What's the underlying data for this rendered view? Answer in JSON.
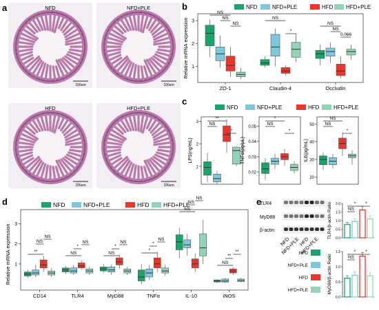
{
  "groups": [
    "NFD",
    "NFD+PLE",
    "HFD",
    "HFD+PLE"
  ],
  "colors": {
    "NFD": "#1aa36b",
    "NFD+PLE": "#7fc8dc",
    "HFD": "#e8382d",
    "HFD+PLE": "#93d3b6",
    "histo_bg": "#f3eef3",
    "tissue": "#b87aa8",
    "tissue_dark": "#8e4f86",
    "lumen": "#f7f2f6"
  },
  "panel_labels": {
    "a": "a",
    "b": "b",
    "c": "c",
    "d": "d",
    "e": "e"
  },
  "panel_a": {
    "tiles": [
      {
        "title": "NFD",
        "scale": "100um"
      },
      {
        "title": "NFD+PLE",
        "scale": "100um"
      },
      {
        "title": "HFD",
        "scale": "100um"
      },
      {
        "title": "HFD+PLE",
        "scale": "100um"
      }
    ]
  },
  "panel_b": {
    "ylabel": "Relative mRNA expression",
    "yticks": [
      "1",
      "2",
      "3"
    ],
    "sig": [
      "NS",
      "NS",
      "NS",
      "NS",
      "*",
      "NS",
      "NS",
      "0.066"
    ],
    "chart_data": {
      "type": "box",
      "ylim": [
        0.3,
        3.3
      ],
      "categories": [
        "ZO-1",
        "Claudin-4",
        "Occludin"
      ],
      "series": [
        {
          "name": "NFD",
          "boxes": [
            {
              "min": 1.4,
              "q1": 1.9,
              "med": 2.45,
              "q3": 2.8,
              "max": 3.05
            },
            {
              "min": 0.95,
              "q1": 1.05,
              "med": 1.15,
              "q3": 1.3,
              "max": 1.45
            },
            {
              "min": 1.05,
              "q1": 1.35,
              "med": 1.55,
              "q3": 1.7,
              "max": 1.95
            }
          ]
        },
        {
          "name": "NFD+PLE",
          "boxes": [
            {
              "min": 0.95,
              "q1": 1.25,
              "med": 1.55,
              "q3": 1.85,
              "max": 2.35
            },
            {
              "min": 1.0,
              "q1": 1.45,
              "med": 1.85,
              "q3": 2.4,
              "max": 2.65
            },
            {
              "min": 1.15,
              "q1": 1.45,
              "med": 1.65,
              "q3": 1.8,
              "max": 2.05
            }
          ]
        },
        {
          "name": "HFD",
          "boxes": [
            {
              "min": 0.55,
              "q1": 0.8,
              "med": 1.05,
              "q3": 1.45,
              "max": 1.85
            },
            {
              "min": 0.6,
              "q1": 0.7,
              "med": 0.8,
              "q3": 0.95,
              "max": 1.05
            },
            {
              "min": 0.5,
              "q1": 0.6,
              "med": 0.8,
              "q3": 1.1,
              "max": 1.45
            }
          ]
        },
        {
          "name": "HFD+PLE",
          "boxes": [
            {
              "min": 0.45,
              "q1": 0.55,
              "med": 0.65,
              "q3": 0.75,
              "max": 0.95
            },
            {
              "min": 1.2,
              "q1": 1.4,
              "med": 1.75,
              "q3": 2.05,
              "max": 2.45
            },
            {
              "min": 1.3,
              "q1": 1.5,
              "med": 1.65,
              "q3": 1.75,
              "max": 1.95
            }
          ]
        }
      ]
    }
  },
  "panel_c": {
    "subplots": [
      {
        "ylabel": "LPS(ng/mL)",
        "yticks": [
          "1",
          "2",
          "3"
        ],
        "ylim": [
          0.2,
          3.2
        ],
        "sig": [
          "NS",
          "**",
          "*"
        ],
        "boxes": [
          {
            "min": 0.3,
            "q1": 0.6,
            "med": 0.95,
            "q3": 1.2,
            "max": 1.6
          },
          {
            "min": 0.2,
            "q1": 0.3,
            "med": 0.45,
            "q3": 0.65,
            "max": 0.8
          },
          {
            "min": 1.6,
            "q1": 2.1,
            "med": 2.4,
            "q3": 2.8,
            "max": 3.1
          },
          {
            "min": 1.0,
            "q1": 1.1,
            "med": 1.7,
            "q3": 1.85,
            "max": 1.9
          }
        ]
      },
      {
        "ylabel": "TNFα(pg/μL)",
        "yticks": [
          "0.02",
          "0.03",
          "0.04",
          "0.05"
        ],
        "ylim": [
          0.012,
          0.056
        ],
        "sig": [
          "NS",
          "*",
          "*"
        ],
        "boxes": [
          {
            "min": 0.015,
            "q1": 0.019,
            "med": 0.022,
            "q3": 0.026,
            "max": 0.029
          },
          {
            "min": 0.022,
            "q1": 0.025,
            "med": 0.027,
            "q3": 0.029,
            "max": 0.032
          },
          {
            "min": 0.024,
            "q1": 0.028,
            "med": 0.03,
            "q3": 0.032,
            "max": 0.035
          },
          {
            "min": 0.019,
            "q1": 0.021,
            "med": 0.023,
            "q3": 0.025,
            "max": 0.027
          }
        ]
      },
      {
        "ylabel": "IL6(pg/mL)",
        "yticks": [
          "20",
          "30",
          "40",
          "50"
        ],
        "ylim": [
          16,
          54
        ],
        "sig": [
          "NS",
          "NS",
          "*"
        ],
        "boxes": [
          {
            "min": 24,
            "q1": 27,
            "med": 30,
            "q3": 32,
            "max": 34
          },
          {
            "min": 25,
            "q1": 27,
            "med": 29,
            "q3": 31,
            "max": 33
          },
          {
            "min": 32,
            "q1": 36,
            "med": 39,
            "q3": 42,
            "max": 45
          },
          {
            "min": 27,
            "q1": 31,
            "med": 32,
            "q3": 33,
            "max": 35
          }
        ]
      }
    ]
  },
  "panel_d": {
    "ylabel": "Relative mRNA expression",
    "yticks": [
      "1",
      "2",
      "3"
    ],
    "sig": [
      "**",
      "NS",
      "NS",
      "NS",
      "*",
      "NS",
      "NS",
      "*",
      "NS",
      "*",
      "*",
      "NS",
      "NS",
      "NS",
      "NS",
      "NS",
      "**",
      "**"
    ],
    "chart_data": {
      "type": "box",
      "ylim": [
        -0.3,
        3.7
      ],
      "categories": [
        "CD14",
        "TLR4",
        "MyD88",
        "TNFα",
        "IL-10",
        "iNOS"
      ],
      "series": [
        {
          "name": "NFD",
          "boxes": [
            {
              "min": 0.3,
              "q1": 0.4,
              "med": 0.5,
              "q3": 0.6,
              "max": 0.7
            },
            {
              "min": 0.5,
              "q1": 0.6,
              "med": 0.7,
              "q3": 0.8,
              "max": 0.9
            },
            {
              "min": 0.55,
              "q1": 0.65,
              "med": 0.75,
              "q3": 0.85,
              "max": 1.0
            },
            {
              "min": 0.0,
              "q1": 0.15,
              "med": 0.35,
              "q3": 0.7,
              "max": 1.0
            },
            {
              "min": 1.3,
              "q1": 1.7,
              "med": 2.1,
              "q3": 2.45,
              "max": 2.8
            },
            {
              "min": 0.05,
              "q1": 0.1,
              "med": 0.15,
              "q3": 0.2,
              "max": 0.25
            }
          ]
        },
        {
          "name": "NFD+PLE",
          "boxes": [
            {
              "min": 0.35,
              "q1": 0.45,
              "med": 0.55,
              "q3": 0.7,
              "max": 0.95
            },
            {
              "min": 0.45,
              "q1": 0.55,
              "med": 0.65,
              "q3": 0.8,
              "max": 0.95
            },
            {
              "min": 0.45,
              "q1": 0.6,
              "med": 0.7,
              "q3": 0.85,
              "max": 0.95
            },
            {
              "min": 0.2,
              "q1": 0.35,
              "med": 0.55,
              "q3": 0.75,
              "max": 0.95
            },
            {
              "min": 1.4,
              "q1": 1.8,
              "med": 1.95,
              "q3": 2.2,
              "max": 2.5
            },
            {
              "min": 0.05,
              "q1": 0.1,
              "med": 0.15,
              "q3": 0.25,
              "max": 0.3
            }
          ]
        },
        {
          "name": "HFD",
          "boxes": [
            {
              "min": 0.6,
              "q1": 0.8,
              "med": 0.95,
              "q3": 1.2,
              "max": 1.4
            },
            {
              "min": 0.7,
              "q1": 0.8,
              "med": 0.9,
              "q3": 1.05,
              "max": 1.2
            },
            {
              "min": 0.75,
              "q1": 0.95,
              "med": 1.1,
              "q3": 1.3,
              "max": 1.45
            },
            {
              "min": 0.6,
              "q1": 0.8,
              "med": 1.0,
              "q3": 1.3,
              "max": 1.6
            },
            {
              "min": 0.6,
              "q1": 0.8,
              "med": 1.0,
              "q3": 1.25,
              "max": 1.5
            },
            {
              "min": 0.45,
              "q1": 0.55,
              "med": 0.65,
              "q3": 0.75,
              "max": 0.85
            }
          ]
        },
        {
          "name": "HFD+PLE",
          "boxes": [
            {
              "min": 0.35,
              "q1": 0.45,
              "med": 0.55,
              "q3": 0.65,
              "max": 0.8
            },
            {
              "min": 0.45,
              "q1": 0.55,
              "med": 0.65,
              "q3": 0.75,
              "max": 0.85
            },
            {
              "min": 0.45,
              "q1": 0.55,
              "med": 0.65,
              "q3": 0.75,
              "max": 0.85
            },
            {
              "min": 0.4,
              "q1": 0.55,
              "med": 0.65,
              "q3": 0.8,
              "max": 0.95
            },
            {
              "min": 1.0,
              "q1": 1.4,
              "med": 1.8,
              "q3": 2.5,
              "max": 3.2
            },
            {
              "min": 0.08,
              "q1": 0.12,
              "med": 0.18,
              "q3": 0.25,
              "max": 0.3
            }
          ]
        }
      ]
    }
  },
  "panel_e": {
    "blot_labels": [
      "TLR4",
      "MyD88",
      "β-actin"
    ],
    "blot_lanes": [
      "NFD",
      "NFD+PLE",
      "HFD",
      "HFD+PLE"
    ],
    "legend_labels": [
      "NFD",
      "NFD+PLE",
      "HFD",
      "HFD+PLE"
    ],
    "bars": [
      {
        "ylabel": "TLR4/β-actin Ratio",
        "yticks": [
          "0.0",
          "0.5",
          "1.0",
          "1.5",
          "2.0"
        ],
        "ylim": [
          0,
          2.0
        ],
        "sig": [
          "NS",
          "*",
          "*"
        ],
        "values": [
          0.78,
          0.95,
          1.62,
          1.1
        ],
        "errors": [
          0.12,
          0.15,
          0.22,
          0.18
        ]
      },
      {
        "ylabel": "MyD88/β-actin Ratio",
        "yticks": [
          "0.0",
          "0.5",
          "1.0",
          "1.5"
        ],
        "ylim": [
          0,
          1.5
        ],
        "sig": [
          "NS",
          "*",
          "*"
        ],
        "values": [
          0.62,
          0.72,
          1.35,
          0.7
        ],
        "errors": [
          0.08,
          0.1,
          0.12,
          0.1
        ]
      }
    ]
  }
}
